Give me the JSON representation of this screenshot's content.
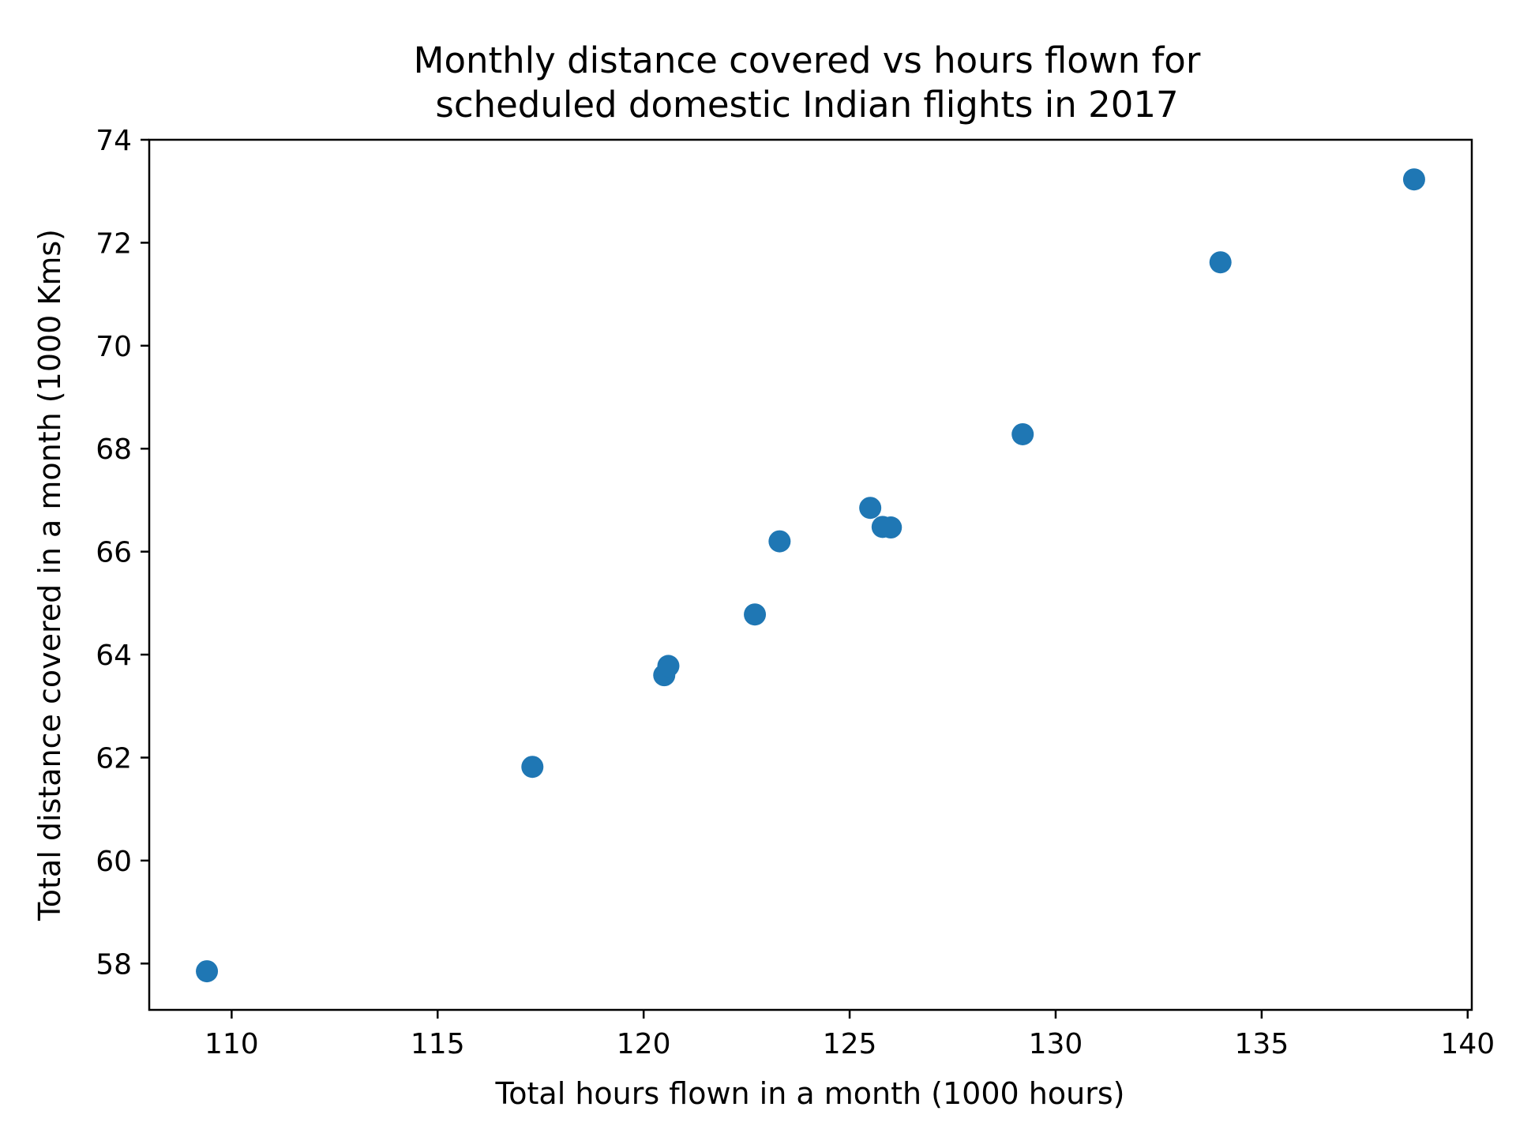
{
  "chart_data": {
    "type": "scatter",
    "title_lines": [
      "Monthly distance covered vs hours flown for",
      "scheduled domestic Indian flights in 2017"
    ],
    "xlabel": "Total hours flown in a month (1000 hours)",
    "ylabel": "Total distance covered in a month  (1000 Kms)",
    "xlim": [
      108,
      140.1
    ],
    "ylim": [
      57.1,
      74
    ],
    "xticks": [
      110,
      115,
      120,
      125,
      130,
      135,
      140
    ],
    "yticks": [
      58,
      60,
      62,
      64,
      66,
      68,
      70,
      72,
      74
    ],
    "grid": false,
    "series": [
      {
        "color": "#1f77b4",
        "x": [
          109.4,
          117.3,
          120.5,
          120.6,
          122.7,
          123.3,
          125.5,
          125.8,
          126.0,
          129.2,
          134.0,
          138.7
        ],
        "y": [
          57.85,
          61.82,
          63.6,
          63.78,
          64.78,
          66.2,
          66.85,
          66.48,
          66.47,
          68.28,
          71.62,
          73.23
        ]
      }
    ]
  }
}
